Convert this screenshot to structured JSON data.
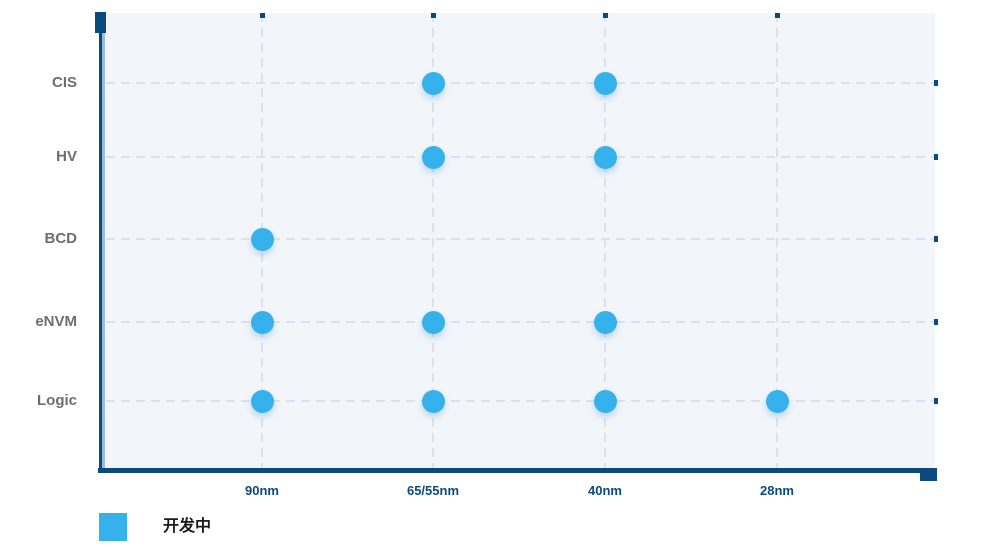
{
  "chart_data": {
    "type": "scatter",
    "title": "",
    "x_categories": [
      "90nm",
      "65/55nm",
      "40nm",
      "28nm"
    ],
    "y_categories": [
      "CIS",
      "HV",
      "BCD",
      "eNVM",
      "Logic"
    ],
    "points": [
      {
        "x": "65/55nm",
        "y": "CIS"
      },
      {
        "x": "40nm",
        "y": "CIS"
      },
      {
        "x": "65/55nm",
        "y": "HV"
      },
      {
        "x": "40nm",
        "y": "HV"
      },
      {
        "x": "90nm",
        "y": "BCD"
      },
      {
        "x": "90nm",
        "y": "eNVM"
      },
      {
        "x": "65/55nm",
        "y": "eNVM"
      },
      {
        "x": "40nm",
        "y": "eNVM"
      },
      {
        "x": "90nm",
        "y": "Logic"
      },
      {
        "x": "65/55nm",
        "y": "Logic"
      },
      {
        "x": "40nm",
        "y": "Logic"
      },
      {
        "x": "28nm",
        "y": "Logic"
      }
    ],
    "legend": {
      "position": "bottom-left",
      "label": "开发中",
      "swatch_color": "#35b1ec"
    },
    "grid": "dashed",
    "colors": {
      "point": "#35b1ec",
      "axis": "#0a4a7f",
      "plot_background": "#f2f6fb",
      "gridline": "#dbe2ee",
      "y_label": "#6e6e6e",
      "x_label": "#0a4a7f",
      "legend_text": "#1a1a1a"
    }
  }
}
